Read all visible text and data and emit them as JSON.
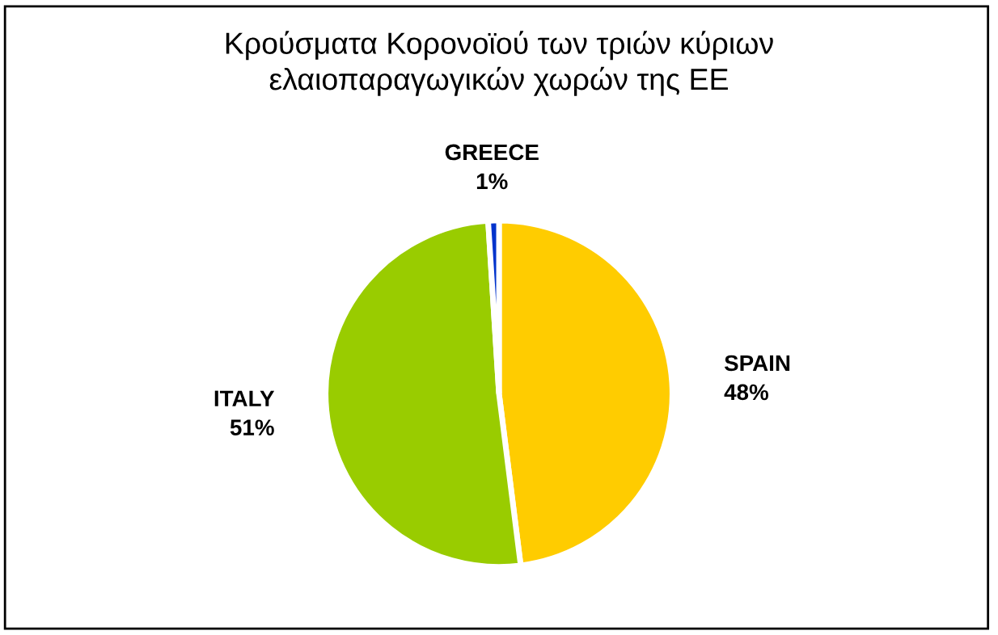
{
  "chart_data": {
    "type": "pie",
    "title": "Κρούσματα Κορονοϊού των τριών κύριων\nελαιοπαραγωγικών χωρών της ΕΕ",
    "categories": [
      "SPAIN",
      "ITALY",
      "GREECE"
    ],
    "values": [
      48,
      51,
      1
    ],
    "colors": [
      "#ffcc00",
      "#99cc00",
      "#0033cc"
    ],
    "value_labels": [
      "48%",
      "51%",
      "1%"
    ],
    "legend": false
  }
}
